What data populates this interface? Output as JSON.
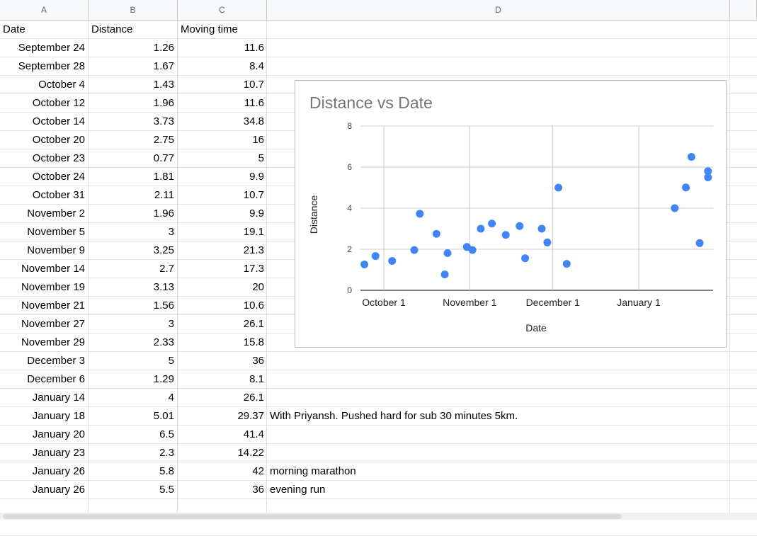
{
  "columns": [
    "A",
    "B",
    "C",
    "D"
  ],
  "headers": {
    "date": "Date",
    "distance": "Distance",
    "moving_time": "Moving time"
  },
  "rows": [
    {
      "date": "September 24",
      "distance": "1.26",
      "moving_time": "11.6",
      "note": ""
    },
    {
      "date": "September 28",
      "distance": "1.67",
      "moving_time": "8.4",
      "note": ""
    },
    {
      "date": "October 4",
      "distance": "1.43",
      "moving_time": "10.7",
      "note": ""
    },
    {
      "date": "October 12",
      "distance": "1.96",
      "moving_time": "11.6",
      "note": ""
    },
    {
      "date": "October 14",
      "distance": "3.73",
      "moving_time": "34.8",
      "note": ""
    },
    {
      "date": "October 20",
      "distance": "2.75",
      "moving_time": "16",
      "note": ""
    },
    {
      "date": "October 23",
      "distance": "0.77",
      "moving_time": "5",
      "note": ""
    },
    {
      "date": "October 24",
      "distance": "1.81",
      "moving_time": "9.9",
      "note": ""
    },
    {
      "date": "October 31",
      "distance": "2.11",
      "moving_time": "10.7",
      "note": ""
    },
    {
      "date": "November 2",
      "distance": "1.96",
      "moving_time": "9.9",
      "note": ""
    },
    {
      "date": "November 5",
      "distance": "3",
      "moving_time": "19.1",
      "note": ""
    },
    {
      "date": "November 9",
      "distance": "3.25",
      "moving_time": "21.3",
      "note": ""
    },
    {
      "date": "November 14",
      "distance": "2.7",
      "moving_time": "17.3",
      "note": ""
    },
    {
      "date": "November 19",
      "distance": "3.13",
      "moving_time": "20",
      "note": ""
    },
    {
      "date": "November 21",
      "distance": "1.56",
      "moving_time": "10.6",
      "note": ""
    },
    {
      "date": "November 27",
      "distance": "3",
      "moving_time": "26.1",
      "note": ""
    },
    {
      "date": "November 29",
      "distance": "2.33",
      "moving_time": "15.8",
      "note": ""
    },
    {
      "date": "December 3",
      "distance": "5",
      "moving_time": "36",
      "note": ""
    },
    {
      "date": "December 6",
      "distance": "1.29",
      "moving_time": "8.1",
      "note": ""
    },
    {
      "date": "January 14",
      "distance": "4",
      "moving_time": "26.1",
      "note": ""
    },
    {
      "date": "January 18",
      "distance": "5.01",
      "moving_time": "29.37",
      "note": "With Priyansh. Pushed hard for sub 30 minutes 5km."
    },
    {
      "date": "January 20",
      "distance": "6.5",
      "moving_time": "41.4",
      "note": ""
    },
    {
      "date": "January 23",
      "distance": "2.3",
      "moving_time": "14.22",
      "note": ""
    },
    {
      "date": "January 26",
      "distance": "5.8",
      "moving_time": "42",
      "note": "morning marathon"
    },
    {
      "date": "January 26",
      "distance": "5.5",
      "moving_time": "36",
      "note": "evening run"
    }
  ],
  "chart_data": {
    "type": "scatter",
    "title": "Distance  vs Date",
    "xlabel": "Date",
    "ylabel": "Distance",
    "x_ticks": [
      "October 1",
      "November 1",
      "December 1",
      "January 1"
    ],
    "y_ticks": [
      "0",
      "2",
      "4",
      "6",
      "8"
    ],
    "ylim": [
      0,
      8
    ],
    "grid": true,
    "point_color": "#4285f4",
    "points": [
      {
        "x": "September 24",
        "y": 1.26
      },
      {
        "x": "September 28",
        "y": 1.67
      },
      {
        "x": "October 4",
        "y": 1.43
      },
      {
        "x": "October 12",
        "y": 1.96
      },
      {
        "x": "October 14",
        "y": 3.73
      },
      {
        "x": "October 20",
        "y": 2.75
      },
      {
        "x": "October 23",
        "y": 0.77
      },
      {
        "x": "October 24",
        "y": 1.81
      },
      {
        "x": "October 31",
        "y": 2.11
      },
      {
        "x": "November 2",
        "y": 1.96
      },
      {
        "x": "November 5",
        "y": 3
      },
      {
        "x": "November 9",
        "y": 3.25
      },
      {
        "x": "November 14",
        "y": 2.7
      },
      {
        "x": "November 19",
        "y": 3.13
      },
      {
        "x": "November 21",
        "y": 1.56
      },
      {
        "x": "November 27",
        "y": 3
      },
      {
        "x": "November 29",
        "y": 2.33
      },
      {
        "x": "December 3",
        "y": 5
      },
      {
        "x": "December 6",
        "y": 1.29
      },
      {
        "x": "January 14",
        "y": 4
      },
      {
        "x": "January 18",
        "y": 5.01
      },
      {
        "x": "January 20",
        "y": 6.5
      },
      {
        "x": "January 23",
        "y": 2.3
      },
      {
        "x": "January 26",
        "y": 5.8
      },
      {
        "x": "January 26",
        "y": 5.5
      }
    ]
  }
}
